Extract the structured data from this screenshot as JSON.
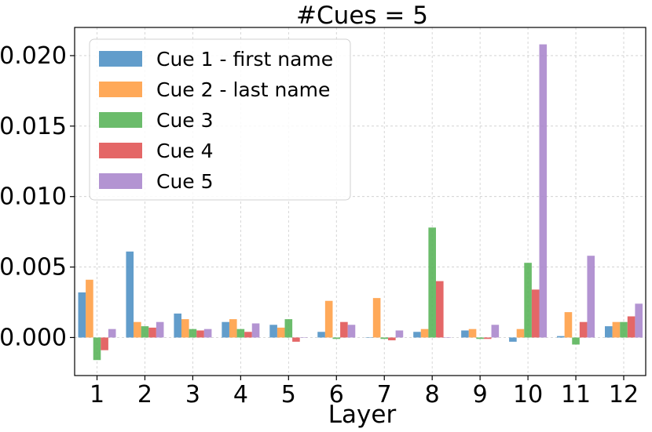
{
  "chart_data": {
    "type": "bar",
    "title": "#Cues = 5",
    "xlabel": "Layer",
    "ylabel": "",
    "categories": [
      "1",
      "2",
      "3",
      "4",
      "5",
      "6",
      "7",
      "8",
      "9",
      "10",
      "11",
      "12"
    ],
    "ylim": [
      -0.0027,
      0.022
    ],
    "yticks": [
      "0.000",
      "0.005",
      "0.010",
      "0.015",
      "0.020"
    ],
    "ytick_values": [
      0.0,
      0.005,
      0.01,
      0.015,
      0.02
    ],
    "grid": true,
    "legend_position": "upper-left",
    "series": [
      {
        "name": "Cue 1 - first name",
        "color": "#4c8fc4",
        "values": [
          0.0032,
          0.0061,
          0.0017,
          0.0011,
          0.0009,
          0.0004,
          0.0,
          0.0004,
          0.0005,
          -0.0003,
          0.0001,
          0.0008
        ]
      },
      {
        "name": "Cue 2 - last name",
        "color": "#ff9d42",
        "values": [
          0.0041,
          0.0011,
          0.0013,
          0.0013,
          0.0007,
          0.0026,
          0.0028,
          0.0006,
          0.0006,
          0.0006,
          0.0018,
          0.0011
        ]
      },
      {
        "name": "Cue 3",
        "color": "#56b356",
        "values": [
          -0.0016,
          0.0008,
          0.0006,
          0.0006,
          0.0013,
          -0.0001,
          -0.0001,
          0.0078,
          -0.0001,
          0.0053,
          -0.0005,
          0.0011
        ]
      },
      {
        "name": "Cue 4",
        "color": "#e05252",
        "values": [
          -0.0009,
          0.0007,
          0.0005,
          0.0004,
          -0.0003,
          0.0011,
          -0.0002,
          0.004,
          -0.0001,
          0.0034,
          0.0011,
          0.0015
        ]
      },
      {
        "name": "Cue 5",
        "color": "#a985cc",
        "values": [
          0.0006,
          0.0011,
          0.0006,
          0.001,
          0.0,
          0.0009,
          0.0005,
          0.0,
          0.0009,
          0.0208,
          0.0058,
          0.0024
        ]
      }
    ]
  }
}
